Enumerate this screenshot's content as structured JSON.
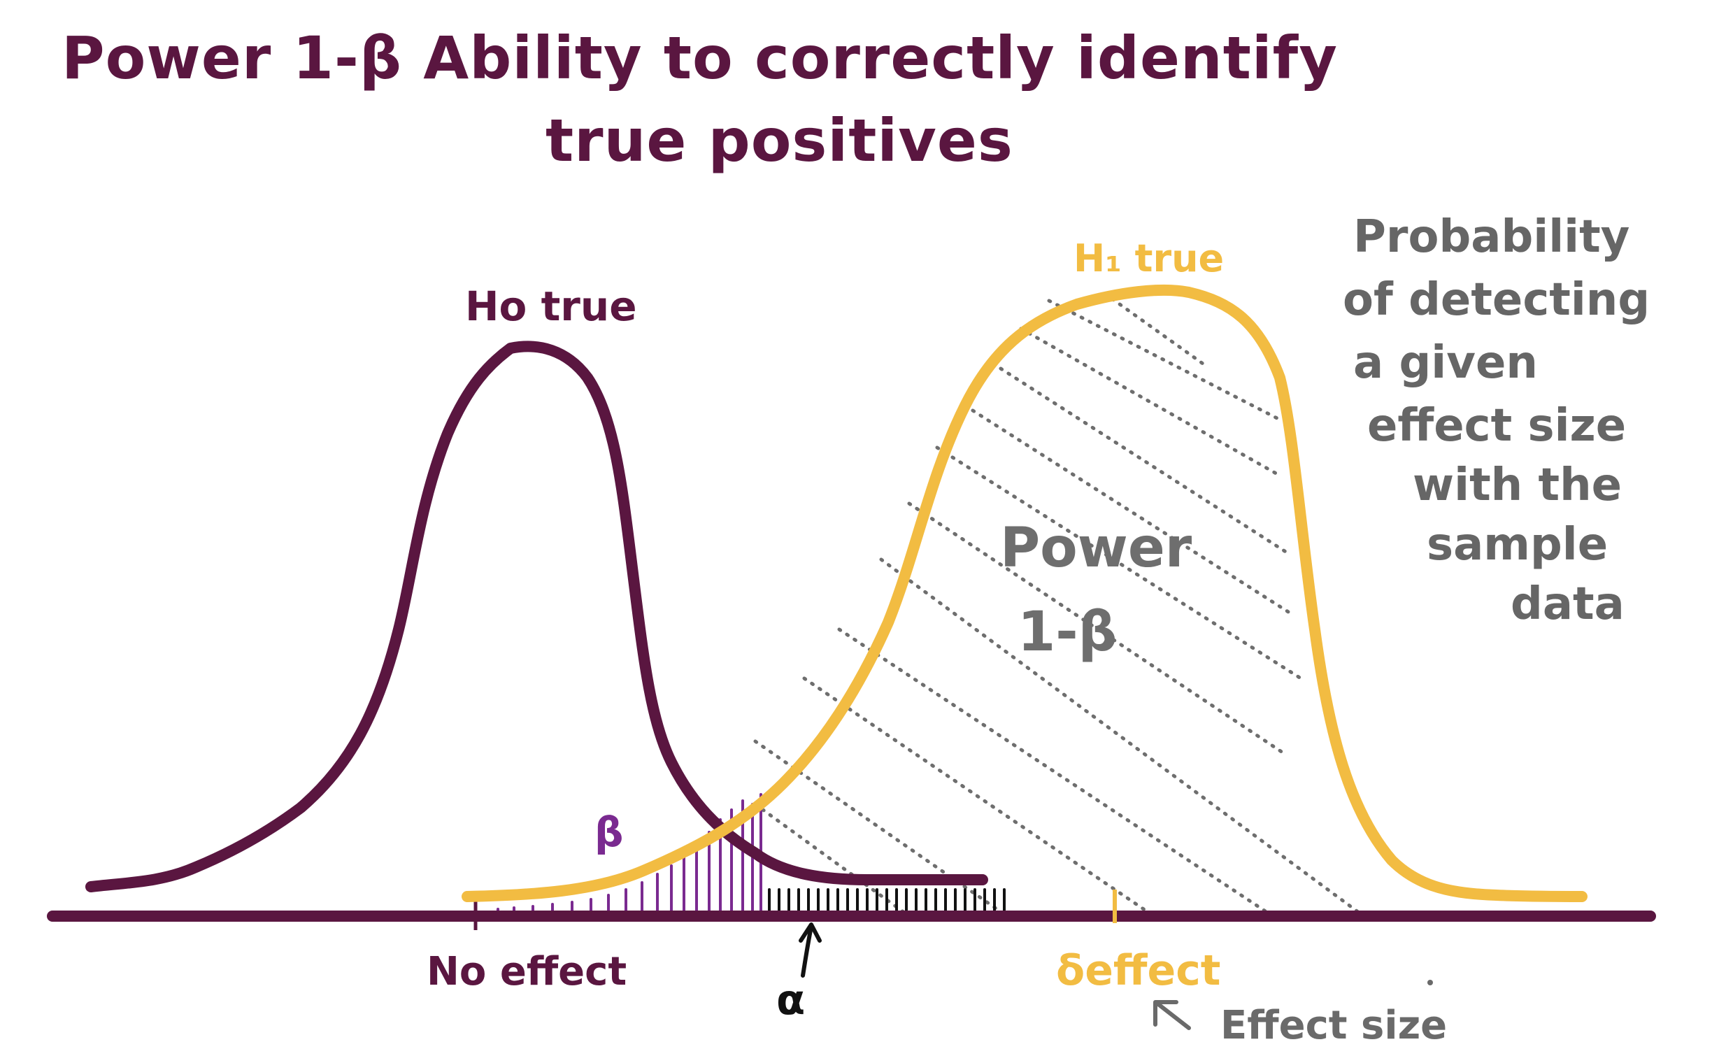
{
  "title": {
    "line1": "Power 1-β Ability to correctly identify",
    "line2": "true positives"
  },
  "labels": {
    "h0_true": "Ho true",
    "h1_true": "H₁ true",
    "power_line1": "Power",
    "power_line2": "1-β",
    "beta": "β",
    "alpha": "α",
    "no_effect": "No effect",
    "delta_effect": "δeffect",
    "effect_size": "Effect size"
  },
  "description": {
    "lines": [
      "Probability",
      "of detecting",
      "a given",
      "effect size",
      "with the",
      "sample",
      "data"
    ]
  },
  "colors": {
    "h0_curve": "#5a1640",
    "h1_curve": "#f2bc42",
    "axis": "#5a1640",
    "beta_hatch": "#7a2a90",
    "alpha_hatch": "#111111",
    "power_hatch": "#6e6e6e",
    "description": "#666666"
  }
}
